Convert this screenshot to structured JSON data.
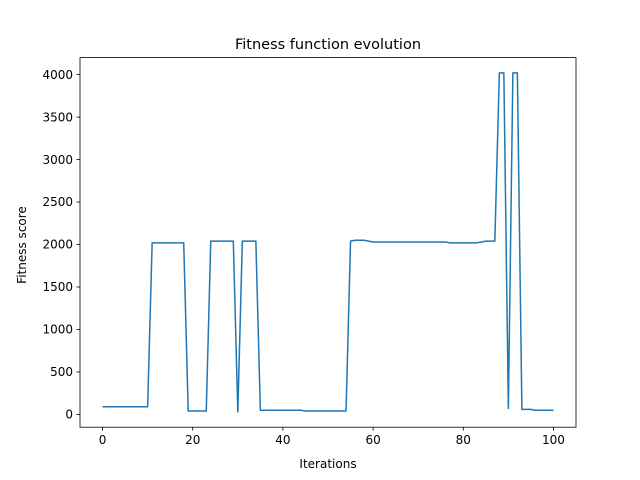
{
  "chart_data": {
    "type": "line",
    "title": "Fitness function evolution",
    "xlabel": "Iterations",
    "ylabel": "Fitness score",
    "xlim": [
      -5,
      105
    ],
    "ylim": [
      -150,
      4200
    ],
    "xticks": [
      0,
      20,
      40,
      60,
      80,
      100
    ],
    "yticks": [
      0,
      500,
      1000,
      1500,
      2000,
      2500,
      3000,
      3500,
      4000
    ],
    "grid": false,
    "line_color": "#1f77b4",
    "series": [
      {
        "x": [
          0,
          1,
          2,
          3,
          4,
          5,
          6,
          7,
          8,
          9,
          10,
          11,
          12,
          13,
          14,
          15,
          16,
          17,
          18,
          19,
          20,
          21,
          22,
          23,
          24,
          25,
          26,
          27,
          28,
          29,
          30,
          31,
          32,
          33,
          34,
          35,
          36,
          37,
          38,
          39,
          40,
          41,
          42,
          43,
          44,
          45,
          46,
          47,
          48,
          49,
          50,
          51,
          52,
          53,
          54,
          55,
          56,
          57,
          58,
          59,
          60,
          61,
          62,
          63,
          64,
          65,
          66,
          67,
          68,
          69,
          70,
          71,
          72,
          73,
          74,
          75,
          76,
          77,
          78,
          79,
          80,
          81,
          82,
          83,
          84,
          85,
          86,
          87,
          88,
          89,
          90,
          91,
          92,
          93,
          94,
          95,
          96,
          97,
          98,
          99,
          100
        ],
        "y": [
          90,
          90,
          90,
          90,
          90,
          90,
          90,
          90,
          90,
          90,
          90,
          2020,
          2020,
          2020,
          2020,
          2020,
          2020,
          2020,
          2020,
          40,
          40,
          40,
          40,
          40,
          2040,
          2040,
          2040,
          2040,
          2040,
          2040,
          30,
          2040,
          2040,
          2040,
          2040,
          50,
          50,
          50,
          50,
          50,
          50,
          50,
          50,
          50,
          50,
          40,
          40,
          40,
          40,
          40,
          40,
          40,
          40,
          40,
          40,
          2040,
          2050,
          2050,
          2050,
          2040,
          2030,
          2030,
          2030,
          2030,
          2030,
          2030,
          2030,
          2030,
          2030,
          2030,
          2030,
          2030,
          2030,
          2030,
          2030,
          2030,
          2030,
          2020,
          2020,
          2020,
          2020,
          2020,
          2020,
          2020,
          2030,
          2040,
          2040,
          2040,
          4020,
          4020,
          70,
          4020,
          4020,
          60,
          60,
          60,
          50,
          50,
          50,
          50,
          50
        ]
      }
    ]
  }
}
